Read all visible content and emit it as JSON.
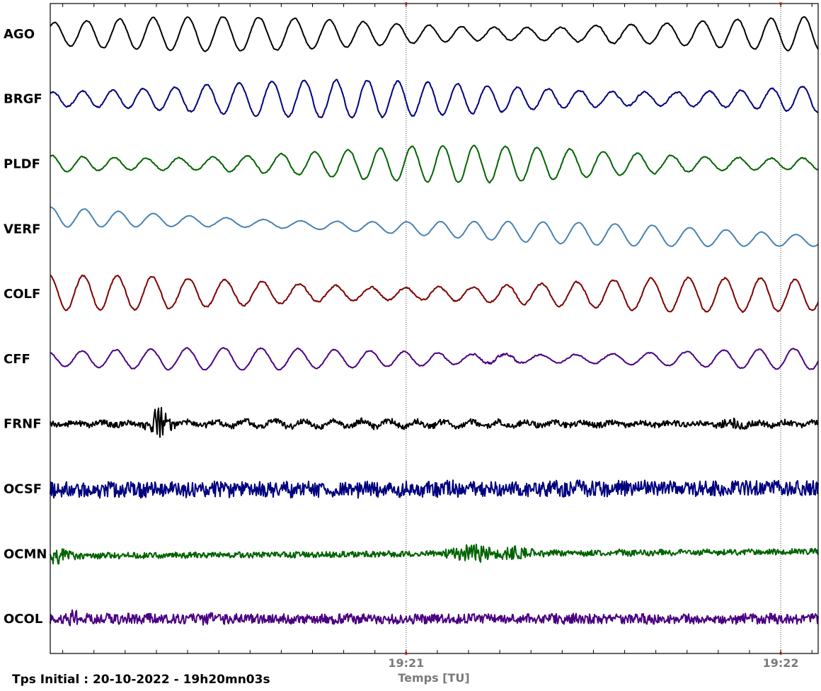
{
  "chart_data": {
    "type": "line",
    "title": "",
    "xlabel": "Temps [TU]",
    "ylabel": "",
    "grid": false,
    "x_start": "19:20:03",
    "x_end": "19:22:06",
    "x_ticks": [
      {
        "time": "19:21:00",
        "label": "19:21"
      },
      {
        "time": "19:22:00",
        "label": "19:22"
      }
    ],
    "vertical_markers": [
      "19:21:00",
      "19:22:00"
    ],
    "series": [
      {
        "name": "AGO",
        "color": "#000000",
        "character": "long-period oscillation, larger swings near 19:21:45"
      },
      {
        "name": "BRGF",
        "color": "#00007f",
        "character": "long-period oscillation with slight noise"
      },
      {
        "name": "PLDF",
        "color": "#006400",
        "character": "long-period oscillation, noisier after 19:21:05"
      },
      {
        "name": "VERF",
        "color": "#4682b4",
        "character": "smooth oscillation with upward drift"
      },
      {
        "name": "COLF",
        "color": "#7f0000",
        "character": "long-period oscillation with noise"
      },
      {
        "name": "CFF",
        "color": "#4b0082",
        "character": "oscillation with burst near 19:21:20"
      },
      {
        "name": "FRNF",
        "color": "#000000",
        "character": "noise with event burst near 19:20:20"
      },
      {
        "name": "OCSF",
        "color": "#00007f",
        "character": "high-amplitude broadband noise"
      },
      {
        "name": "OCMN",
        "color": "#006400",
        "character": "noise with bursts near 19:20:03 and 19:21:15"
      },
      {
        "name": "OCOL",
        "color": "#4b0082",
        "character": "broadband noise with spike near 19:20:06"
      }
    ]
  },
  "footer": {
    "text": "Tps Initial : 20-10-2022 - 19h20mn03s"
  }
}
